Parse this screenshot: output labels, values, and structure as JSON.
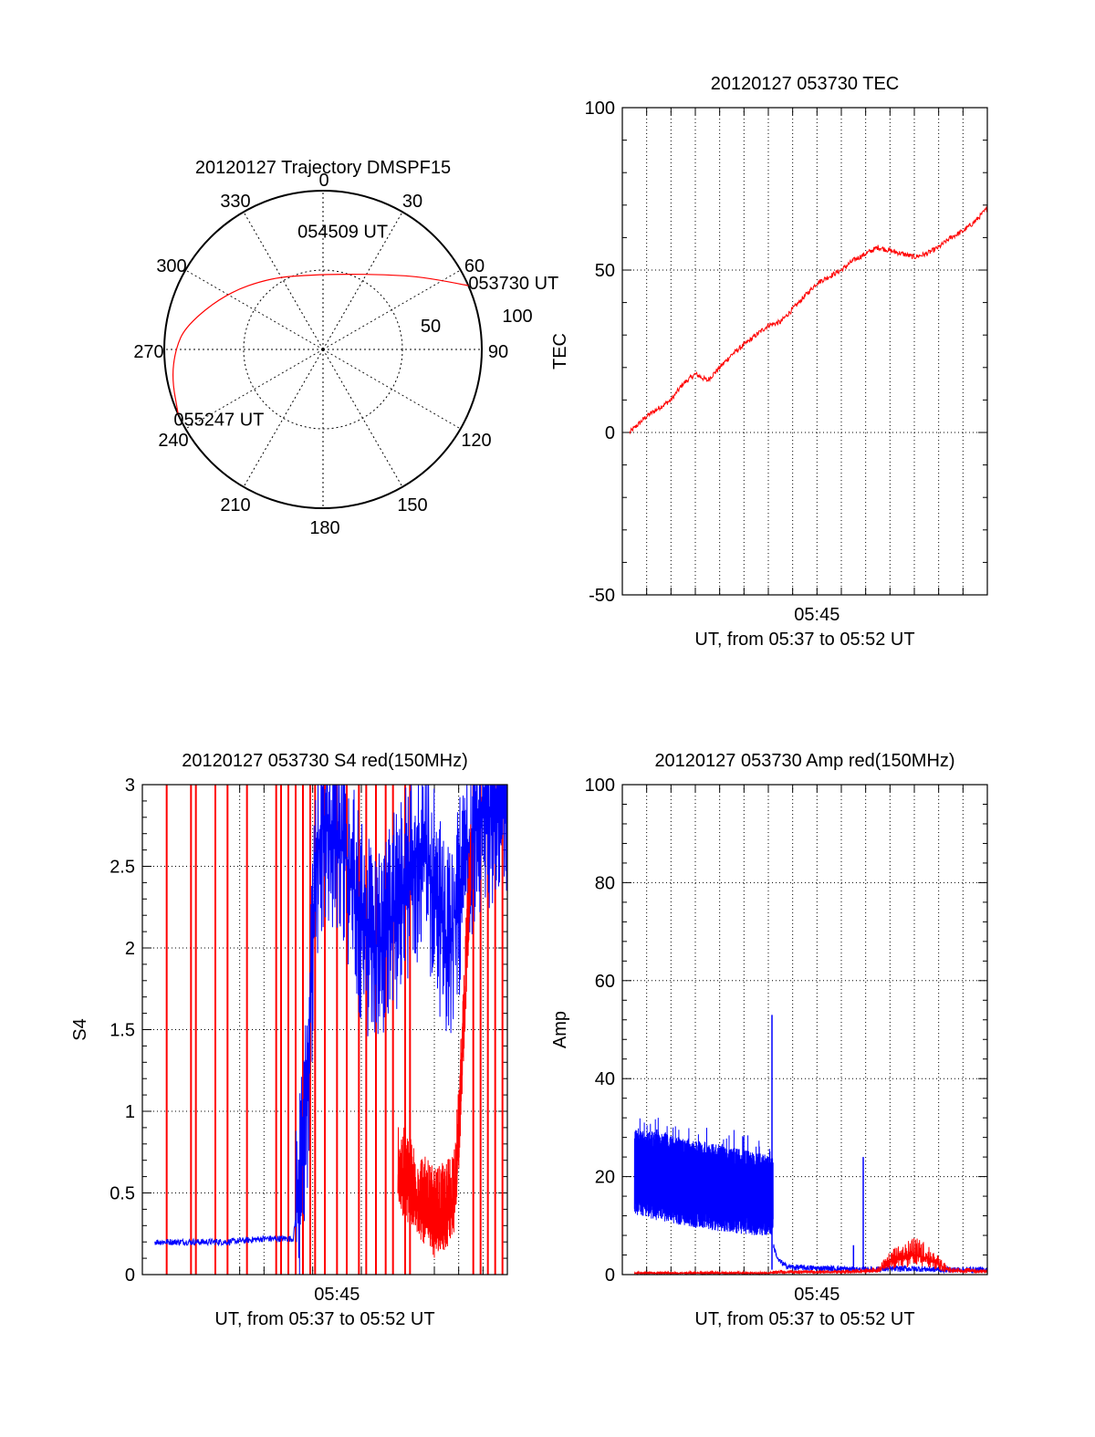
{
  "chart_data": [
    {
      "panel": "trajectory",
      "type": "scatter",
      "projection": "polar",
      "title": "20120127 Trajectory DMSPF15",
      "azimuth_labels": [
        "0",
        "30",
        "60",
        "90",
        "120",
        "150",
        "180",
        "210",
        "240",
        "270",
        "300",
        "330"
      ],
      "elevation_rings": [
        {
          "value": "50",
          "label": "50"
        },
        {
          "value": "100",
          "label": "100"
        }
      ],
      "grid": true,
      "trajectory_color": "#ff0000",
      "trajectory": [
        {
          "az": 66.3,
          "r": 100.0
        },
        {
          "az": 55.0,
          "r": 79.5
        },
        {
          "az": 39.1,
          "r": 60.8
        },
        {
          "az": 15.0,
          "r": 49.1
        },
        {
          "az": -8.0,
          "r": 47.4
        },
        {
          "az": -36.0,
          "r": 55.8
        },
        {
          "az": -60.0,
          "r": 70.5
        },
        {
          "az": -80.0,
          "r": 87.5
        },
        {
          "az": -90.0,
          "r": 93.0
        },
        {
          "az": -101.0,
          "r": 97.0
        },
        {
          "az": -114.3,
          "r": 100.0
        }
      ],
      "annotations": [
        {
          "text": "053730 UT",
          "az": 66.3,
          "r": 100.0
        },
        {
          "text": "054509 UT",
          "az": 15.0,
          "r": 49.1
        },
        {
          "text": "055247 UT",
          "az": -114.3,
          "r": 100.0
        }
      ]
    },
    {
      "panel": "tec",
      "type": "line",
      "title": "20120127 053730 TEC",
      "ylabel": "TEC",
      "xlabel": "UT, from 05:37 to 05:52 UT",
      "x_ticks": [
        "05:45"
      ],
      "ylim": [
        -50,
        100
      ],
      "y_ticks": [
        -50,
        0,
        50,
        100
      ],
      "grid": true,
      "series": [
        {
          "color": "#ff0000",
          "x": [
            0.3,
            1.0,
            2.0,
            2.5,
            3.0,
            3.5,
            4.0,
            4.5,
            5.0,
            5.5,
            6.0,
            6.5,
            7.0,
            7.5,
            8.0,
            8.5,
            9.0,
            9.5,
            10.0,
            10.5,
            11.0,
            11.5,
            12.0,
            12.5,
            13.0,
            13.5,
            14.0,
            14.5,
            15.0
          ],
          "y": [
            0,
            5,
            10,
            15,
            18,
            16,
            20,
            24,
            27,
            30,
            33,
            34,
            38,
            42,
            46,
            48,
            50,
            53,
            55,
            57,
            56,
            55,
            54,
            55,
            57,
            60,
            62,
            65,
            69
          ]
        }
      ]
    },
    {
      "panel": "s4",
      "type": "line",
      "title": "20120127 053730 S4 red(150MHz)",
      "ylabel": "S4",
      "xlabel": "UT, from 05:37 to 05:52 UT",
      "x_ticks": [
        "05:45"
      ],
      "ylim": [
        0,
        3
      ],
      "y_ticks": [
        "0",
        "0.5",
        "1",
        "1.5",
        "2",
        "2.5",
        "3"
      ],
      "grid": true,
      "series": [
        {
          "color": "#0000ff",
          "x": [
            0.5,
            2.0,
            3.5,
            5.0,
            6.2,
            6.5,
            6.8,
            7.0,
            7.2,
            7.5,
            8.0,
            8.5,
            9.0,
            9.5,
            10.0,
            10.5,
            11.0,
            11.5,
            12.0,
            12.5,
            13.0,
            13.5,
            14.0,
            14.5,
            15.0
          ],
          "y": [
            0.2,
            0.2,
            0.2,
            0.22,
            0.22,
            0.6,
            1.2,
            2.0,
            2.6,
            2.8,
            2.7,
            2.5,
            2.2,
            2.0,
            2.1,
            2.3,
            2.5,
            2.6,
            2.4,
            2.0,
            2.3,
            2.7,
            2.8,
            2.9,
            3.0
          ]
        },
        {
          "color": "#ff0000",
          "x": [
            10.5,
            11.0,
            11.5,
            12.0,
            12.5,
            12.8,
            13.0,
            13.2,
            13.5
          ],
          "y": [
            0.6,
            0.5,
            0.4,
            0.3,
            0.35,
            0.45,
            0.8,
            1.5,
            2.5
          ]
        }
      ],
      "red_spikes_x": [
        1.0,
        2.0,
        2.2,
        3.0,
        3.5,
        4.3,
        5.5,
        5.7,
        6.0,
        6.3,
        6.6,
        6.9,
        7.1,
        7.5,
        8.0,
        8.4,
        8.9,
        9.2,
        9.6,
        10.0,
        10.3,
        10.8,
        11.0,
        13.6,
        13.9,
        14.2,
        14.5,
        14.8
      ]
    },
    {
      "panel": "amp",
      "type": "line",
      "title": "20120127 053730 Amp red(150MHz)",
      "ylabel": "Amp",
      "xlabel": "UT, from 05:37 to 05:52 UT",
      "x_ticks": [
        "05:45"
      ],
      "ylim": [
        0,
        100
      ],
      "y_ticks": [
        0,
        20,
        40,
        60,
        80,
        100
      ],
      "grid": true,
      "series": [
        {
          "color": "#0000ff",
          "band": true,
          "x": [
            0.5,
            1.5,
            2.5,
            3.5,
            4.5,
            5.5,
            6.2
          ],
          "ymin": [
            12,
            11,
            10,
            9,
            8.5,
            8,
            8
          ],
          "ymax": [
            30,
            29,
            28,
            27,
            26,
            25,
            24
          ]
        },
        {
          "color": "#0000ff",
          "x": [
            6.2,
            6.4,
            6.7,
            7.0,
            8.0,
            9.0,
            9.5,
            10.0,
            11.0,
            12.0,
            13.0,
            14.0,
            15.0
          ],
          "y": [
            6,
            3,
            1.8,
            1.5,
            1.3,
            1.2,
            1.0,
            1.0,
            1.2,
            1.2,
            1.0,
            1.0,
            1.0
          ]
        },
        {
          "color": "#ff0000",
          "x": [
            0.5,
            3.0,
            6.0,
            6.3,
            9.0,
            10.5,
            11.0,
            11.5,
            12.0,
            12.5,
            13.0,
            13.5,
            15.0
          ],
          "y": [
            0.3,
            0.3,
            0.3,
            0.5,
            0.5,
            0.8,
            2.5,
            3.5,
            4.0,
            3.5,
            2.0,
            0.8,
            0.6
          ]
        }
      ],
      "spikes": [
        {
          "x": 6.15,
          "y": 53,
          "color": "#0000ff"
        },
        {
          "x": 9.9,
          "y": 24,
          "color": "#0000ff"
        },
        {
          "x": 9.5,
          "y": 6,
          "color": "#0000ff"
        }
      ]
    }
  ]
}
